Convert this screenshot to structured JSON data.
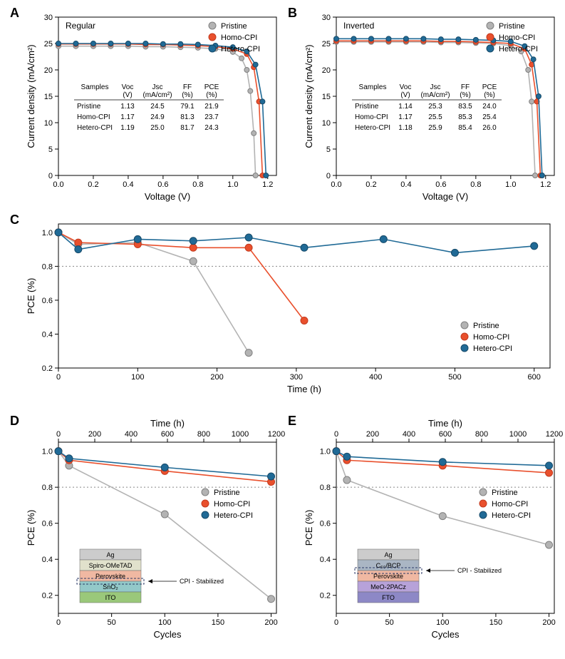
{
  "colors": {
    "pristine": "#b3b3b3",
    "pristine_stroke": "#808080",
    "homo": "#e9502d",
    "homo_stroke": "#c23a1e",
    "hetero": "#206a96",
    "hetero_stroke": "#164a69",
    "axis": "#000000",
    "grid_dash": "#888888",
    "bg": "#ffffff"
  },
  "legend_labels": {
    "pristine": "Pristine",
    "homo": "Homo-CPI",
    "hetero": "Hetero-CPI"
  },
  "panels": {
    "A": {
      "label": "A",
      "tag": "Regular",
      "type": "line-scatter",
      "xlabel": "Voltage (V)",
      "ylabel": "Current density (mA/cm²)",
      "xlim": [
        0.0,
        1.25
      ],
      "xticks": [
        0.0,
        0.2,
        0.4,
        0.6,
        0.8,
        1.0,
        1.2
      ],
      "ylim": [
        0,
        30
      ],
      "yticks": [
        0,
        5,
        10,
        15,
        20,
        25,
        30
      ],
      "series": {
        "pristine": [
          [
            0.0,
            24.5
          ],
          [
            0.1,
            24.5
          ],
          [
            0.2,
            24.5
          ],
          [
            0.3,
            24.5
          ],
          [
            0.4,
            24.5
          ],
          [
            0.5,
            24.4
          ],
          [
            0.6,
            24.4
          ],
          [
            0.7,
            24.3
          ],
          [
            0.8,
            24.2
          ],
          [
            0.9,
            24.0
          ],
          [
            1.0,
            23.4
          ],
          [
            1.05,
            22.2
          ],
          [
            1.08,
            20.0
          ],
          [
            1.1,
            16.0
          ],
          [
            1.12,
            8.0
          ],
          [
            1.13,
            0.0
          ]
        ],
        "homo": [
          [
            0.0,
            24.9
          ],
          [
            0.1,
            24.9
          ],
          [
            0.2,
            24.9
          ],
          [
            0.3,
            24.9
          ],
          [
            0.4,
            24.9
          ],
          [
            0.5,
            24.8
          ],
          [
            0.6,
            24.8
          ],
          [
            0.7,
            24.7
          ],
          [
            0.8,
            24.6
          ],
          [
            0.9,
            24.4
          ],
          [
            1.0,
            24.0
          ],
          [
            1.08,
            23.0
          ],
          [
            1.12,
            20.5
          ],
          [
            1.15,
            14.0
          ],
          [
            1.17,
            0.0
          ]
        ],
        "hetero": [
          [
            0.0,
            25.0
          ],
          [
            0.1,
            25.0
          ],
          [
            0.2,
            25.0
          ],
          [
            0.3,
            25.0
          ],
          [
            0.4,
            25.0
          ],
          [
            0.5,
            25.0
          ],
          [
            0.6,
            24.9
          ],
          [
            0.7,
            24.9
          ],
          [
            0.8,
            24.8
          ],
          [
            0.9,
            24.6
          ],
          [
            1.0,
            24.3
          ],
          [
            1.08,
            23.5
          ],
          [
            1.13,
            21.0
          ],
          [
            1.17,
            14.0
          ],
          [
            1.19,
            0.0
          ]
        ]
      },
      "table": {
        "columns": [
          "Samples",
          "Voc\n(V)",
          "Jsc\n(mA/cm²)",
          "FF\n(%)",
          "PCE\n(%)"
        ],
        "rows": [
          [
            "Pristine",
            "1.13",
            "24.5",
            "79.1",
            "21.9"
          ],
          [
            "Homo-CPI",
            "1.17",
            "24.9",
            "81.3",
            "23.7"
          ],
          [
            "Hetero-CPI",
            "1.19",
            "25.0",
            "81.7",
            "24.3"
          ]
        ]
      }
    },
    "B": {
      "label": "B",
      "tag": "Inverted",
      "type": "line-scatter",
      "xlabel": "Voltage (V)",
      "ylabel": "Current density (mA/cm²)",
      "xlim": [
        0.0,
        1.25
      ],
      "xticks": [
        0.0,
        0.2,
        0.4,
        0.6,
        0.8,
        1.0,
        1.2
      ],
      "ylim": [
        0,
        30
      ],
      "yticks": [
        0,
        5,
        10,
        15,
        20,
        25,
        30
      ],
      "series": {
        "pristine": [
          [
            0.0,
            25.3
          ],
          [
            0.1,
            25.3
          ],
          [
            0.2,
            25.3
          ],
          [
            0.3,
            25.3
          ],
          [
            0.4,
            25.3
          ],
          [
            0.5,
            25.3
          ],
          [
            0.6,
            25.2
          ],
          [
            0.7,
            25.2
          ],
          [
            0.8,
            25.1
          ],
          [
            0.9,
            25.0
          ],
          [
            1.0,
            24.6
          ],
          [
            1.06,
            23.5
          ],
          [
            1.1,
            20.0
          ],
          [
            1.12,
            14.0
          ],
          [
            1.14,
            0.0
          ]
        ],
        "homo": [
          [
            0.0,
            25.5
          ],
          [
            0.1,
            25.5
          ],
          [
            0.2,
            25.5
          ],
          [
            0.3,
            25.5
          ],
          [
            0.4,
            25.5
          ],
          [
            0.5,
            25.5
          ],
          [
            0.6,
            25.4
          ],
          [
            0.7,
            25.4
          ],
          [
            0.8,
            25.3
          ],
          [
            0.9,
            25.2
          ],
          [
            1.0,
            25.0
          ],
          [
            1.08,
            24.0
          ],
          [
            1.12,
            21.0
          ],
          [
            1.15,
            14.0
          ],
          [
            1.17,
            0.0
          ]
        ],
        "hetero": [
          [
            0.0,
            25.9
          ],
          [
            0.1,
            25.9
          ],
          [
            0.2,
            25.9
          ],
          [
            0.3,
            25.9
          ],
          [
            0.4,
            25.9
          ],
          [
            0.5,
            25.9
          ],
          [
            0.6,
            25.8
          ],
          [
            0.7,
            25.8
          ],
          [
            0.8,
            25.7
          ],
          [
            0.9,
            25.6
          ],
          [
            1.0,
            25.4
          ],
          [
            1.08,
            24.5
          ],
          [
            1.13,
            22.0
          ],
          [
            1.16,
            15.0
          ],
          [
            1.18,
            0.0
          ]
        ]
      },
      "table": {
        "columns": [
          "Samples",
          "Voc\n(V)",
          "Jsc\n(mA/cm²)",
          "FF\n(%)",
          "PCE\n(%)"
        ],
        "rows": [
          [
            "Pristine",
            "1.14",
            "25.3",
            "83.5",
            "24.0"
          ],
          [
            "Homo-CPI",
            "1.17",
            "25.5",
            "85.3",
            "25.4"
          ],
          [
            "Hetero-CPI",
            "1.18",
            "25.9",
            "85.4",
            "26.0"
          ]
        ]
      }
    },
    "C": {
      "label": "C",
      "type": "line-scatter",
      "xlabel": "Time (h)",
      "ylabel": "PCE (%)",
      "xlim": [
        0,
        620
      ],
      "xticks": [
        0,
        100,
        200,
        300,
        400,
        500,
        600
      ],
      "ylim": [
        0.2,
        1.05
      ],
      "yticks": [
        0.2,
        0.4,
        0.6,
        0.8,
        1.0
      ],
      "ref_line": 0.8,
      "series": {
        "pristine": [
          [
            0,
            1.0
          ],
          [
            25,
            0.93
          ],
          [
            100,
            0.94
          ],
          [
            170,
            0.83
          ],
          [
            240,
            0.29
          ]
        ],
        "homo": [
          [
            0,
            1.0
          ],
          [
            25,
            0.94
          ],
          [
            100,
            0.93
          ],
          [
            170,
            0.91
          ],
          [
            240,
            0.91
          ],
          [
            310,
            0.48
          ]
        ],
        "hetero": [
          [
            0,
            1.0
          ],
          [
            25,
            0.9
          ],
          [
            100,
            0.96
          ],
          [
            170,
            0.95
          ],
          [
            240,
            0.97
          ],
          [
            310,
            0.91
          ],
          [
            410,
            0.96
          ],
          [
            500,
            0.88
          ],
          [
            600,
            0.92
          ]
        ]
      }
    },
    "D": {
      "label": "D",
      "type": "line-scatter-dualx",
      "xlabel_bottom": "Cycles",
      "xlabel_top": "Time (h)",
      "ylabel": "PCE (%)",
      "xlim": [
        0,
        205
      ],
      "xticks_bottom": [
        0,
        50,
        100,
        150,
        200
      ],
      "xticks_top": [
        0,
        200,
        400,
        600,
        800,
        1000,
        1200
      ],
      "ylim": [
        0.1,
        1.05
      ],
      "yticks": [
        0.2,
        0.4,
        0.6,
        0.8,
        1.0
      ],
      "ref_line": 0.8,
      "series": {
        "pristine": [
          [
            0,
            1.0
          ],
          [
            10,
            0.92
          ],
          [
            100,
            0.65
          ],
          [
            200,
            0.18
          ]
        ],
        "homo": [
          [
            0,
            1.0
          ],
          [
            10,
            0.95
          ],
          [
            100,
            0.89
          ],
          [
            200,
            0.83
          ]
        ],
        "hetero": [
          [
            0,
            1.0
          ],
          [
            10,
            0.96
          ],
          [
            100,
            0.91
          ],
          [
            200,
            0.86
          ]
        ]
      },
      "stack": {
        "annotation": "CPI - Stabilized",
        "layers": [
          {
            "label": "Ag",
            "color": "#cccccc"
          },
          {
            "label": "Spiro-OMeTAD",
            "color": "#e1e1cc"
          },
          {
            "label": "Perovskite",
            "color": "#f0b8a2"
          },
          {
            "label": "SnO₂",
            "color": "#93c9c9"
          },
          {
            "label": "ITO",
            "color": "#9ac87a"
          }
        ],
        "divider_after_index": 2
      }
    },
    "E": {
      "label": "E",
      "type": "line-scatter-dualx",
      "xlabel_bottom": "Cycles",
      "xlabel_top": "Time (h)",
      "ylabel": "PCE (%)",
      "xlim": [
        0,
        205
      ],
      "xticks_bottom": [
        0,
        50,
        100,
        150,
        200
      ],
      "xticks_top": [
        0,
        200,
        400,
        600,
        800,
        1000,
        1200
      ],
      "ylim": [
        0.1,
        1.05
      ],
      "yticks": [
        0.2,
        0.4,
        0.6,
        0.8,
        1.0
      ],
      "ref_line": 0.8,
      "series": {
        "pristine": [
          [
            0,
            1.0
          ],
          [
            10,
            0.84
          ],
          [
            100,
            0.64
          ],
          [
            200,
            0.48
          ]
        ],
        "homo": [
          [
            0,
            1.0
          ],
          [
            10,
            0.95
          ],
          [
            100,
            0.92
          ],
          [
            200,
            0.88
          ]
        ],
        "hetero": [
          [
            0,
            1.0
          ],
          [
            10,
            0.97
          ],
          [
            100,
            0.94
          ],
          [
            200,
            0.92
          ]
        ]
      },
      "stack": {
        "annotation": "CPI - Stabilized",
        "layers": [
          {
            "label": "Ag",
            "color": "#cccccc"
          },
          {
            "label": "C₆₀/BCP",
            "color": "#aab6c4"
          },
          {
            "label": "Perovskite",
            "color": "#f0b8a2"
          },
          {
            "label": "MeO-2PACz",
            "color": "#b7a2d9"
          },
          {
            "label": "FTO",
            "color": "#8d88c6"
          }
        ],
        "divider_after_index": 1
      }
    }
  }
}
